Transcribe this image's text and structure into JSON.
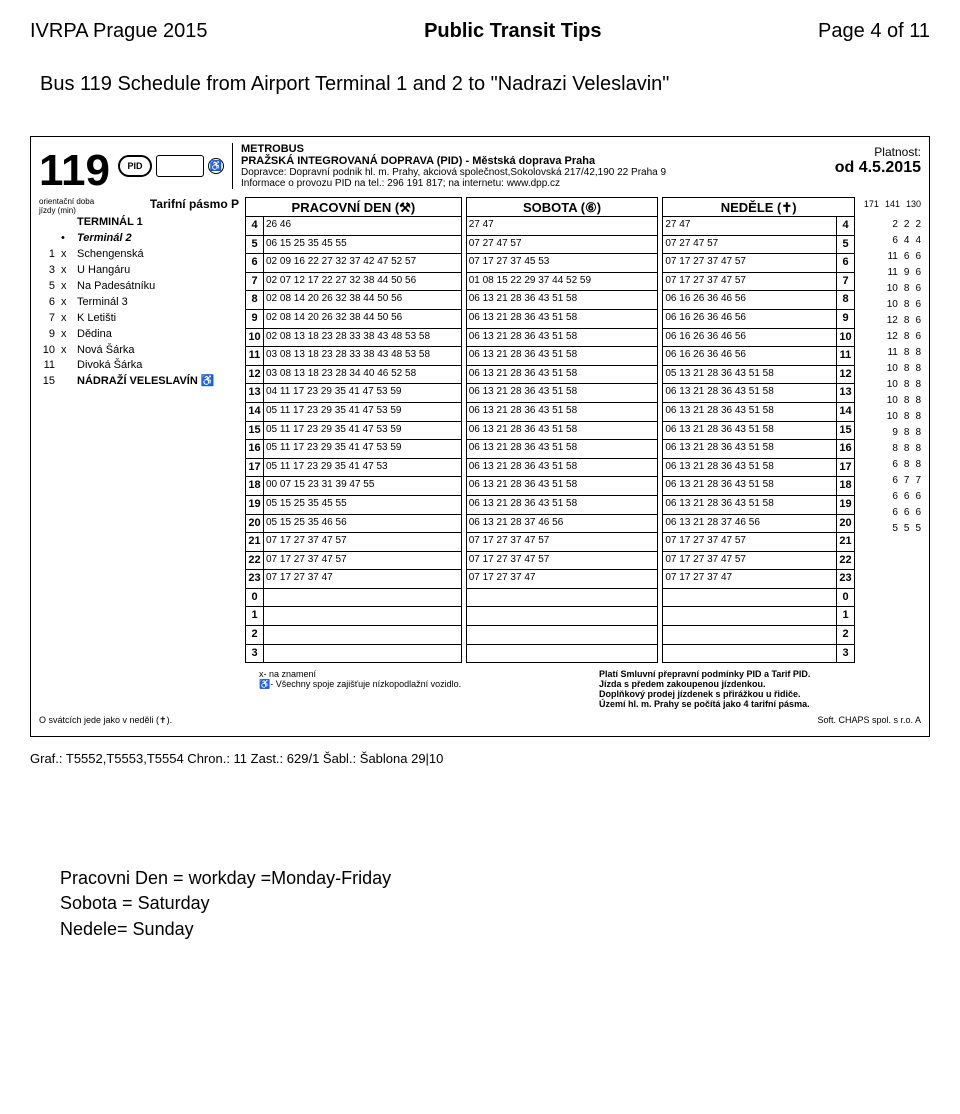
{
  "page_header": {
    "left": "IVRPA Prague 2015",
    "center": "Public Transit Tips",
    "right": "Page 4 of 11"
  },
  "subhead": "Bus 119 Schedule from Airport Terminal 1 and 2 to \"Nadrazi Veleslavin\"",
  "route": "119",
  "metrobus": "METROBUS",
  "operator_line1": "PRAŽSKÁ INTEGROVANÁ DOPRAVA (PID) - Městská doprava Praha",
  "operator_line2": "Dopravce: Dopravní podnik hl. m. Prahy, akciová společnost,Sokolovská 217/42,190 22 Praha 9",
  "operator_line3": "Informace o provozu PID na tel.: 296 191 817; na internetu: www.dpp.cz",
  "validity_label": "Platnost:",
  "validity_date": "od 4.5.2015",
  "stops_hdr_left": "orientační doba\njízdy (min)",
  "stops_hdr_right": "Tarifní pásmo P",
  "day_workday": "PRACOVNÍ DEN (⚒)",
  "day_saturday": "SOBOTA (⑥)",
  "day_sunday": "NEDĚLE (✝)",
  "meta_hdr": [
    "171",
    "141",
    "130"
  ],
  "stops": [
    {
      "min": "",
      "x": "",
      "name": "TERMINÁL 1",
      "bold": true
    },
    {
      "min": "",
      "x": "•",
      "name": "Terminál 2",
      "bold": true,
      "italic": true
    },
    {
      "min": "1",
      "x": "x",
      "name": "Schengenská"
    },
    {
      "min": "3",
      "x": "x",
      "name": "U Hangáru"
    },
    {
      "min": "5",
      "x": "x",
      "name": "Na Padesátníku"
    },
    {
      "min": "6",
      "x": "x",
      "name": "Terminál 3"
    },
    {
      "min": "7",
      "x": "x",
      "name": "K Letišti"
    },
    {
      "min": "9",
      "x": "x",
      "name": "Dědina"
    },
    {
      "min": "10",
      "x": "x",
      "name": "Nová Šárka"
    },
    {
      "min": "11",
      "x": "",
      "name": "Divoká Šárka"
    },
    {
      "min": "15",
      "x": "",
      "name": "NÁDRAŽÍ VELESLAVÍN  ♿",
      "bold": true
    }
  ],
  "hours": [
    "4",
    "5",
    "6",
    "7",
    "8",
    "9",
    "10",
    "11",
    "12",
    "13",
    "14",
    "15",
    "16",
    "17",
    "18",
    "19",
    "20",
    "21",
    "22",
    "23",
    "0",
    "1",
    "2",
    "3"
  ],
  "workday": [
    "26 46",
    "06 15 25 35 45 55",
    "02 09 16 22 27 32 37 42 47 52 57",
    "02 07 12 17 22 27 32 38 44 50 56",
    "02 08 14 20 26 32 38 44 50 56",
    "02 08 14 20 26 32 38 44 50 56",
    "02 08 13 18 23 28 33 38 43 48 53 58",
    "03 08 13 18 23 28 33 38 43 48 53 58",
    "03 08 13 18 23 28 34 40 46 52 58",
    "04 11 17 23 29 35 41 47 53 59",
    "05 11 17 23 29 35 41 47 53 59",
    "05 11 17 23 29 35 41 47 53 59",
    "05 11 17 23 29 35 41 47 53 59",
    "05 11 17 23 29 35 41 47 53",
    "00 07 15 23 31 39 47 55",
    "05 15 25 35 45 55",
    "05 15 25 35 46 56",
    "07 17 27 37 47 57",
    "07 17 27 37 47 57",
    "07 17 27 37 47",
    "",
    "",
    "",
    ""
  ],
  "saturday": [
    "27 47",
    "07 27 47 57",
    "07 17 27 37 45 53",
    "01 08 15 22 29 37 44 52 59",
    "06 13 21 28 36 43 51 58",
    "06 13 21 28 36 43 51 58",
    "06 13 21 28 36 43 51 58",
    "06 13 21 28 36 43 51 58",
    "06 13 21 28 36 43 51 58",
    "06 13 21 28 36 43 51 58",
    "06 13 21 28 36 43 51 58",
    "06 13 21 28 36 43 51 58",
    "06 13 21 28 36 43 51 58",
    "06 13 21 28 36 43 51 58",
    "06 13 21 28 36 43 51 58",
    "06 13 21 28 36 43 51 58",
    "06 13 21 28 37 46 56",
    "07 17 27 37 47 57",
    "07 17 27 37 47 57",
    "07 17 27 37 47",
    "",
    "",
    "",
    ""
  ],
  "sunday": [
    "27 47",
    "07 27 47 57",
    "07 17 27 37 47 57",
    "07 17 27 37 47 57",
    "06 16 26 36 46 56",
    "06 16 26 36 46 56",
    "06 16 26 36 46 56",
    "06 16 26 36 46 56",
    "05 13 21 28 36 43 51 58",
    "06 13 21 28 36 43 51 58",
    "06 13 21 28 36 43 51 58",
    "06 13 21 28 36 43 51 58",
    "06 13 21 28 36 43 51 58",
    "06 13 21 28 36 43 51 58",
    "06 13 21 28 36 43 51 58",
    "06 13 21 28 36 43 51 58",
    "06 13 21 28 37 46 56",
    "07 17 27 37 47 57",
    "07 17 27 37 47 57",
    "07 17 27 37 47",
    "",
    "",
    "",
    ""
  ],
  "meta": [
    [
      "2",
      "2",
      "2"
    ],
    [
      "6",
      "4",
      "4"
    ],
    [
      "11",
      "6",
      "6"
    ],
    [
      "11",
      "9",
      "6"
    ],
    [
      "10",
      "8",
      "6"
    ],
    [
      "10",
      "8",
      "6"
    ],
    [
      "12",
      "8",
      "6"
    ],
    [
      "12",
      "8",
      "6"
    ],
    [
      "11",
      "8",
      "8"
    ],
    [
      "10",
      "8",
      "8"
    ],
    [
      "10",
      "8",
      "8"
    ],
    [
      "10",
      "8",
      "8"
    ],
    [
      "10",
      "8",
      "8"
    ],
    [
      "9",
      "8",
      "8"
    ],
    [
      "8",
      "8",
      "8"
    ],
    [
      "6",
      "8",
      "8"
    ],
    [
      "6",
      "7",
      "7"
    ],
    [
      "6",
      "6",
      "6"
    ],
    [
      "6",
      "6",
      "6"
    ],
    [
      "5",
      "5",
      "5"
    ],
    [
      "",
      "",
      ""
    ],
    [
      "",
      "",
      ""
    ],
    [
      "",
      "",
      ""
    ],
    [
      "",
      "",
      ""
    ]
  ],
  "notes_left": [
    "x- na znamení",
    "♿- Všechny spoje zajišťuje nízkopodlažní vozidlo."
  ],
  "notes_right": [
    "Platí Smluvní přepravní podmínky PID a Tarif PID.",
    "Jízda s předem zakoupenou jízdenkou.",
    "Doplňkový prodej jízdenek s přirážkou u řidiče.",
    "Území hl. m. Prahy se počítá jako 4 tarifní pásma."
  ],
  "foot_left": "O svátcích jede jako v neděli (✝).",
  "foot_right": "Soft. CHAPS spol. s r.o.    A",
  "graf": "Graf.: T5552,T5553,T5554    Chron.: 11    Zast.: 629/1    Šabl.: Šablona 29|10",
  "legend": [
    "Pracovni Den = workday =Monday-Friday",
    "Sobota = Saturday",
    "Nedele= Sunday"
  ]
}
